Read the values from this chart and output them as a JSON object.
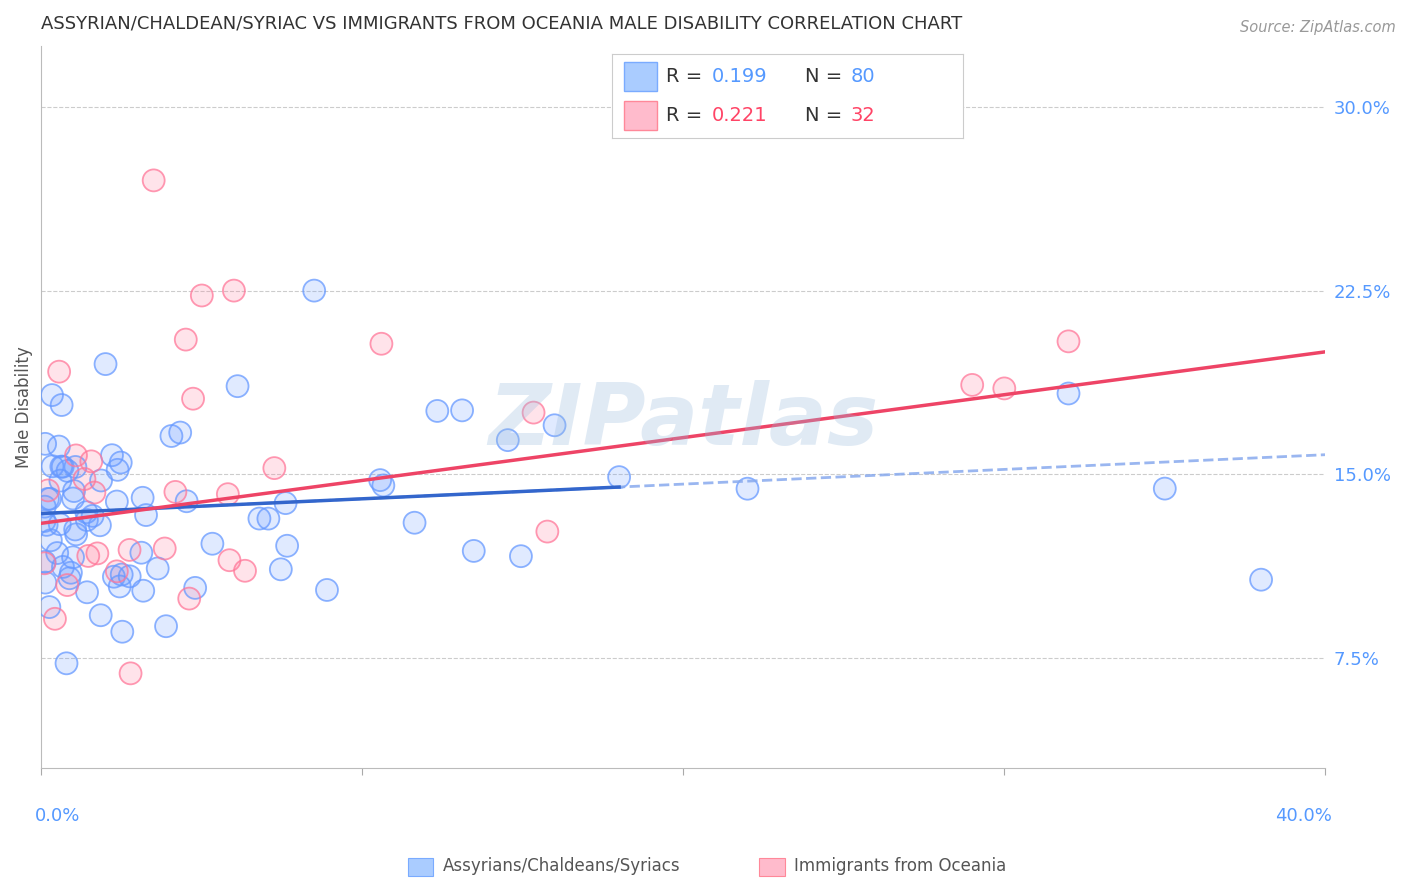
{
  "title": "ASSYRIAN/CHALDEAN/SYRIAC VS IMMIGRANTS FROM OCEANIA MALE DISABILITY CORRELATION CHART",
  "source_text": "Source: ZipAtlas.com",
  "ylabel": "Male Disability",
  "right_ytick_labels": [
    "30.0%",
    "22.5%",
    "15.0%",
    "7.5%"
  ],
  "right_ytick_vals": [
    0.3,
    0.225,
    0.15,
    0.075
  ],
  "xlim": [
    0.0,
    0.4
  ],
  "ylim": [
    0.03,
    0.325
  ],
  "x_left_label": "0.0%",
  "x_right_label": "40.0%",
  "watermark": "ZIPatlas",
  "legend_r1": "0.199",
  "legend_n1": "80",
  "legend_r2": "0.221",
  "legend_n2": "32",
  "legend_label1": "Assyrians/Chaldeans/Syriacs",
  "legend_label2": "Immigrants from Oceania",
  "blue_scatter_color": "#6699ff",
  "pink_scatter_color": "#ff7799",
  "blue_line_color": "#3366cc",
  "pink_line_color": "#ee4466",
  "blue_dashed_color": "#88aaee",
  "title_color": "#333333",
  "source_color": "#999999",
  "axis_tick_color": "#5599ff",
  "grid_color": "#cccccc",
  "watermark_color": "#99bbdd",
  "background": "#ffffff",
  "blue_line_y0": 0.134,
  "blue_line_y1": 0.158,
  "pink_line_y0": 0.13,
  "pink_line_y1": 0.2,
  "blue_seed": 77,
  "pink_seed": 88
}
